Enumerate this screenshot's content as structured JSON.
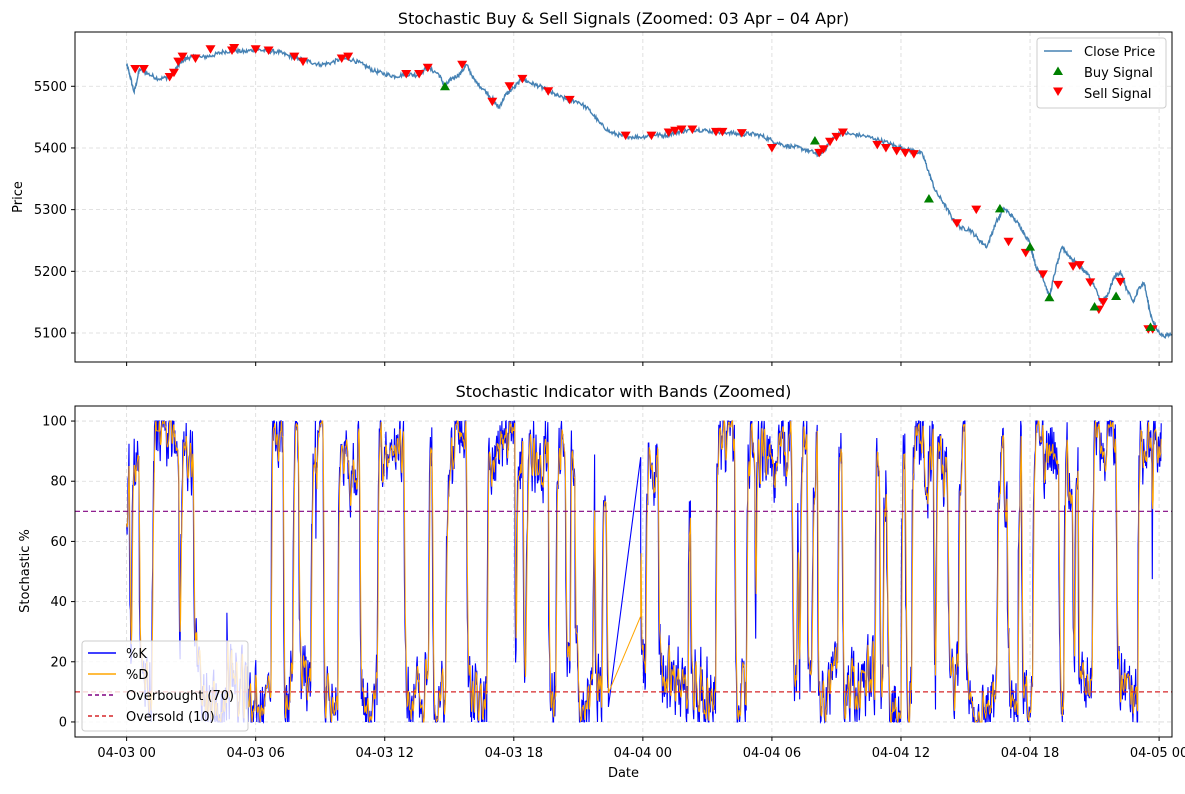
{
  "chart_data": [
    {
      "type": "line",
      "title": "Stochastic Buy & Sell Signals (Zoomed: 03 Apr – 04 Apr)",
      "xlabel": "",
      "ylabel": "Price",
      "x_unit": "hours since 04-03 00:00",
      "xlim": [
        -2.4,
        48.6
      ],
      "ylim": [
        5053,
        5588
      ],
      "yticks": [
        5100,
        5200,
        5300,
        5400,
        5500
      ],
      "grid": true,
      "legend_position": "top-right",
      "series": [
        {
          "name": "Close Price",
          "color": "#4682b4",
          "points": [
            [
              0,
              5535
            ],
            [
              0.1,
              5525
            ],
            [
              0.35,
              5490
            ],
            [
              0.6,
              5528
            ],
            [
              1.0,
              5520
            ],
            [
              1.5,
              5512
            ],
            [
              2.0,
              5515
            ],
            [
              2.3,
              5528
            ],
            [
              2.6,
              5542
            ],
            [
              3.0,
              5548
            ],
            [
              3.5,
              5547
            ],
            [
              4.0,
              5550
            ],
            [
              4.5,
              5556
            ],
            [
              5.0,
              5558
            ],
            [
              5.5,
              5556
            ],
            [
              6.0,
              5560
            ],
            [
              6.5,
              5557
            ],
            [
              7.0,
              5556
            ],
            [
              7.5,
              5550
            ],
            [
              8.0,
              5545
            ],
            [
              8.5,
              5540
            ],
            [
              9.0,
              5535
            ],
            [
              9.5,
              5538
            ],
            [
              10.0,
              5545
            ],
            [
              10.5,
              5543
            ],
            [
              11.0,
              5535
            ],
            [
              11.5,
              5525
            ],
            [
              12.0,
              5520
            ],
            [
              12.5,
              5516
            ],
            [
              13.0,
              5520
            ],
            [
              13.5,
              5518
            ],
            [
              14.0,
              5530
            ],
            [
              14.5,
              5520
            ],
            [
              14.8,
              5500
            ],
            [
              15.1,
              5512
            ],
            [
              15.5,
              5520
            ],
            [
              15.8,
              5535
            ],
            [
              16.2,
              5508
            ],
            [
              16.6,
              5495
            ],
            [
              17.0,
              5480
            ],
            [
              17.3,
              5465
            ],
            [
              17.6,
              5485
            ],
            [
              18.0,
              5498
            ],
            [
              18.4,
              5512
            ],
            [
              18.8,
              5505
            ],
            [
              19.2,
              5500
            ],
            [
              19.6,
              5492
            ],
            [
              20.0,
              5485
            ],
            [
              20.5,
              5478
            ],
            [
              21.0,
              5475
            ],
            [
              21.5,
              5462
            ],
            [
              22.0,
              5440
            ],
            [
              22.5,
              5425
            ],
            [
              23.0,
              5420
            ],
            [
              23.4,
              5418
            ],
            [
              24.0,
              5418
            ],
            [
              24.5,
              5422
            ],
            [
              25.0,
              5420
            ],
            [
              25.5,
              5425
            ],
            [
              26.0,
              5428
            ],
            [
              26.5,
              5430
            ],
            [
              27.0,
              5428
            ],
            [
              27.5,
              5425
            ],
            [
              28.0,
              5425
            ],
            [
              28.5,
              5422
            ],
            [
              29.0,
              5423
            ],
            [
              29.5,
              5420
            ],
            [
              30.0,
              5412
            ],
            [
              30.5,
              5405
            ],
            [
              31.0,
              5402
            ],
            [
              31.5,
              5398
            ],
            [
              32.0,
              5392
            ],
            [
              32.2,
              5388
            ],
            [
              32.5,
              5400
            ],
            [
              32.8,
              5415
            ],
            [
              33.2,
              5425
            ],
            [
              33.7,
              5422
            ],
            [
              34.2,
              5420
            ],
            [
              34.8,
              5415
            ],
            [
              35.4,
              5408
            ],
            [
              35.8,
              5402
            ],
            [
              36.2,
              5398
            ],
            [
              36.6,
              5395
            ],
            [
              37.0,
              5390
            ],
            [
              37.3,
              5360
            ],
            [
              37.6,
              5330
            ],
            [
              38.0,
              5310
            ],
            [
              38.4,
              5285
            ],
            [
              38.8,
              5270
            ],
            [
              39.2,
              5268
            ],
            [
              39.6,
              5252
            ],
            [
              40.0,
              5240
            ],
            [
              40.4,
              5278
            ],
            [
              40.8,
              5302
            ],
            [
              41.2,
              5288
            ],
            [
              41.6,
              5270
            ],
            [
              42.0,
              5245
            ],
            [
              42.3,
              5205
            ],
            [
              42.6,
              5190
            ],
            [
              42.9,
              5158
            ],
            [
              43.2,
              5205
            ],
            [
              43.5,
              5240
            ],
            [
              43.8,
              5225
            ],
            [
              44.1,
              5215
            ],
            [
              44.4,
              5205
            ],
            [
              44.7,
              5195
            ],
            [
              45.0,
              5175
            ],
            [
              45.3,
              5150
            ],
            [
              45.6,
              5160
            ],
            [
              45.9,
              5190
            ],
            [
              46.2,
              5200
            ],
            [
              46.5,
              5170
            ],
            [
              46.8,
              5150
            ],
            [
              47.1,
              5175
            ],
            [
              47.3,
              5182
            ],
            [
              47.6,
              5130
            ],
            [
              47.9,
              5105
            ],
            [
              48.2,
              5095
            ],
            [
              48.6,
              5098
            ]
          ]
        }
      ],
      "signals": [
        {
          "name": "Buy Signal",
          "color": "#008000",
          "marker": "triangle-up",
          "points": [
            [
              14.8,
              5500
            ],
            [
              32.0,
              5412
            ],
            [
              37.3,
              5318
            ],
            [
              40.6,
              5302
            ],
            [
              42.0,
              5240
            ],
            [
              42.9,
              5158
            ],
            [
              45.0,
              5143
            ],
            [
              46.0,
              5160
            ],
            [
              47.6,
              5110
            ]
          ]
        },
        {
          "name": "Sell Signal",
          "color": "#ff0000",
          "marker": "triangle-down",
          "points": [
            [
              0.4,
              5528
            ],
            [
              0.8,
              5528
            ],
            [
              2.0,
              5515
            ],
            [
              2.2,
              5522
            ],
            [
              2.4,
              5540
            ],
            [
              2.6,
              5548
            ],
            [
              3.2,
              5545
            ],
            [
              3.9,
              5560
            ],
            [
              4.9,
              5558
            ],
            [
              5.0,
              5562
            ],
            [
              6.0,
              5560
            ],
            [
              6.6,
              5558
            ],
            [
              7.8,
              5548
            ],
            [
              8.2,
              5540
            ],
            [
              10.0,
              5545
            ],
            [
              10.3,
              5548
            ],
            [
              13.0,
              5520
            ],
            [
              13.6,
              5520
            ],
            [
              14.0,
              5530
            ],
            [
              15.6,
              5535
            ],
            [
              17.0,
              5475
            ],
            [
              17.8,
              5500
            ],
            [
              18.4,
              5512
            ],
            [
              19.6,
              5492
            ],
            [
              20.6,
              5478
            ],
            [
              23.2,
              5420
            ],
            [
              24.4,
              5420
            ],
            [
              25.2,
              5425
            ],
            [
              25.5,
              5428
            ],
            [
              25.8,
              5430
            ],
            [
              26.3,
              5430
            ],
            [
              27.4,
              5426
            ],
            [
              27.7,
              5426
            ],
            [
              28.6,
              5424
            ],
            [
              30.0,
              5400
            ],
            [
              32.2,
              5392
            ],
            [
              32.4,
              5398
            ],
            [
              32.7,
              5410
            ],
            [
              33.0,
              5418
            ],
            [
              33.3,
              5425
            ],
            [
              34.9,
              5405
            ],
            [
              35.3,
              5400
            ],
            [
              35.8,
              5395
            ],
            [
              36.2,
              5392
            ],
            [
              36.6,
              5390
            ],
            [
              38.6,
              5278
            ],
            [
              39.5,
              5300
            ],
            [
              41.0,
              5248
            ],
            [
              41.8,
              5230
            ],
            [
              42.6,
              5195
            ],
            [
              43.3,
              5178
            ],
            [
              44.0,
              5208
            ],
            [
              44.3,
              5210
            ],
            [
              44.8,
              5182
            ],
            [
              45.2,
              5138
            ],
            [
              45.4,
              5150
            ],
            [
              46.2,
              5183
            ],
            [
              47.5,
              5106
            ],
            [
              47.7,
              5106
            ]
          ]
        }
      ],
      "legend": [
        "Close Price",
        "Buy Signal",
        "Sell Signal"
      ]
    },
    {
      "type": "line",
      "title": "Stochastic Indicator with Bands (Zoomed)",
      "xlabel": "Date",
      "ylabel": "Stochastic %",
      "x_unit": "hours since 04-03 00:00",
      "xlim": [
        -2.4,
        48.6
      ],
      "ylim": [
        -5,
        105
      ],
      "yticks": [
        0,
        20,
        40,
        60,
        80,
        100
      ],
      "xticks": [
        0,
        6,
        12,
        18,
        24,
        30,
        36,
        42,
        48
      ],
      "xtick_labels": [
        "04-03 00",
        "04-03 06",
        "04-03 12",
        "04-03 18",
        "04-04 00",
        "04-04 06",
        "04-04 12",
        "04-04 18",
        "04-05 00"
      ],
      "grid": true,
      "legend_position": "bottom-left",
      "series": [
        {
          "name": "%K",
          "color": "#0000ff",
          "description": "oscillates rapidly between roughly 0 and 100 throughout the period"
        },
        {
          "name": "%D",
          "color": "#ffa500",
          "description": "smoothed %K, oscillating between roughly 5 and 95"
        },
        {
          "name": "Overbought (70)",
          "color": "#800080",
          "style": "dashed",
          "value": 70
        },
        {
          "name": "Oversold (10)",
          "color": "#d62728",
          "style": "dashed",
          "value": 10
        }
      ],
      "legend": [
        "%K",
        "%D",
        "Overbought (70)",
        "Oversold (10)"
      ]
    }
  ]
}
